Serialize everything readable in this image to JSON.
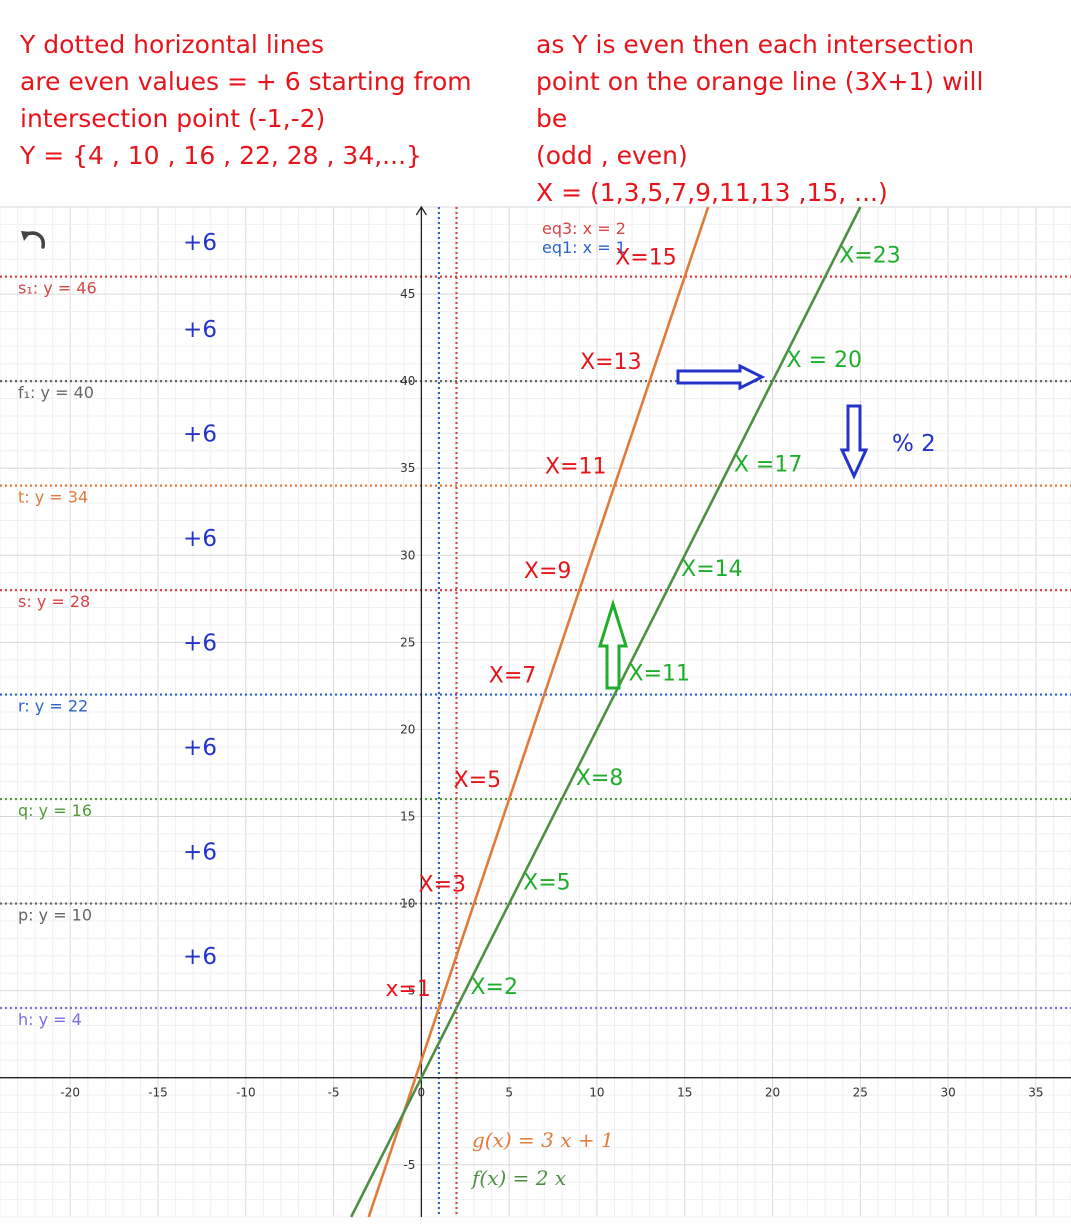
{
  "notes": {
    "left": [
      "Y dotted horizontal lines",
      "are even values = + 6 starting from",
      "intersection point (-1,-2)",
      "Y = {4 , 10 , 16 , 22, 28 , 34,...}"
    ],
    "right": [
      "as Y is even then each intersection",
      "point on the orange line (3X+1) will",
      "be",
      "(odd , even)",
      "X = (1,3,5,7,9,11,13 ,15, ...)"
    ]
  },
  "colors": {
    "annotation_red": "#e8141b",
    "annotation_blue": "#2433c9",
    "annotation_green": "#1fae2c",
    "orange_line": "#e07b39",
    "green_line": "#4f8f44",
    "blue": "#2b63c9",
    "red_dotted": "#d64545",
    "gray_dotted": "#666666",
    "orange_dotted": "#e07b39",
    "green_dotted": "#4f9a3a",
    "purple_dotted": "#7a6fe0",
    "grid": "#e6e6e6",
    "axis": "#222222"
  },
  "toolbar": {
    "undo_icon": "undo-icon"
  },
  "chart_data": {
    "type": "line",
    "xlim": [
      -24,
      37
    ],
    "ylim": [
      -8,
      50
    ],
    "grid": true,
    "x_ticks": [
      -20,
      -15,
      -10,
      -5,
      0,
      5,
      10,
      15,
      20,
      25,
      30,
      35
    ],
    "y_ticks": [
      -5,
      5,
      10,
      15,
      20,
      25,
      30,
      35,
      40,
      45
    ],
    "series": [
      {
        "name": "g(x) = 3 x + 1",
        "slope": 3,
        "intercept": 1,
        "color": "#e07b39"
      },
      {
        "name": "f(x) = 2 x",
        "slope": 2,
        "intercept": 0,
        "color": "#4f8f44"
      }
    ],
    "horizontal_lines": [
      {
        "label": "s₁: y = 46",
        "y": 46,
        "color": "#d64545"
      },
      {
        "label": "f₁: y = 40",
        "y": 40,
        "color": "#666666"
      },
      {
        "label": "t: y = 34",
        "y": 34,
        "color": "#e07b39"
      },
      {
        "label": "s: y = 28",
        "y": 28,
        "color": "#d64545"
      },
      {
        "label": "r: y = 22",
        "y": 22,
        "color": "#2b63c9"
      },
      {
        "label": "q: y = 16",
        "y": 16,
        "color": "#4f9a3a"
      },
      {
        "label": "p: y = 10",
        "y": 10,
        "color": "#666666"
      },
      {
        "label": "h: y = 4",
        "y": 4,
        "color": "#7a6fe0"
      }
    ],
    "vertical_lines": [
      {
        "label": "eq3: x = 2",
        "x": 2,
        "color": "#d64545"
      },
      {
        "label": "eq1: x = 1",
        "x": 1,
        "color": "#2b63c9"
      }
    ],
    "plus_six_labels": [
      {
        "text": "+6",
        "y": 48
      },
      {
        "text": "+6",
        "y": 43
      },
      {
        "text": "+6",
        "y": 37
      },
      {
        "text": "+6",
        "y": 31
      },
      {
        "text": "+6",
        "y": 25
      },
      {
        "text": "+6",
        "y": 19
      },
      {
        "text": "+6",
        "y": 13
      },
      {
        "text": "+6",
        "y": 7
      }
    ],
    "orange_point_labels": [
      {
        "text": "x=1",
        "x": 1,
        "y": 4
      },
      {
        "text": "X=3",
        "x": 3,
        "y": 10
      },
      {
        "text": "X=5",
        "x": 5,
        "y": 16
      },
      {
        "text": "X=7",
        "x": 7,
        "y": 22
      },
      {
        "text": "X=9",
        "x": 9,
        "y": 28
      },
      {
        "text": "X=11",
        "x": 11,
        "y": 34
      },
      {
        "text": "X=13",
        "x": 13,
        "y": 40
      },
      {
        "text": "X=15",
        "x": 15,
        "y": 46
      }
    ],
    "green_point_labels": [
      {
        "text": "X=2",
        "x": 2,
        "y": 4
      },
      {
        "text": "X=5",
        "x": 5,
        "y": 10
      },
      {
        "text": "X=8",
        "x": 8,
        "y": 16
      },
      {
        "text": "X=11",
        "x": 11,
        "y": 22
      },
      {
        "text": "X=14",
        "x": 14,
        "y": 28
      },
      {
        "text": "X =17",
        "x": 17,
        "y": 34
      },
      {
        "text": "X = 20",
        "x": 20,
        "y": 40
      },
      {
        "text": "X=23",
        "x": 23,
        "y": 46
      }
    ],
    "extra_annotations": [
      {
        "text": "% 2"
      }
    ],
    "legend": [
      {
        "text": "g(x)  =  3 x + 1",
        "color": "#e07b39"
      },
      {
        "text": "f(x)  =  2 x",
        "color": "#4f8f44"
      }
    ]
  }
}
